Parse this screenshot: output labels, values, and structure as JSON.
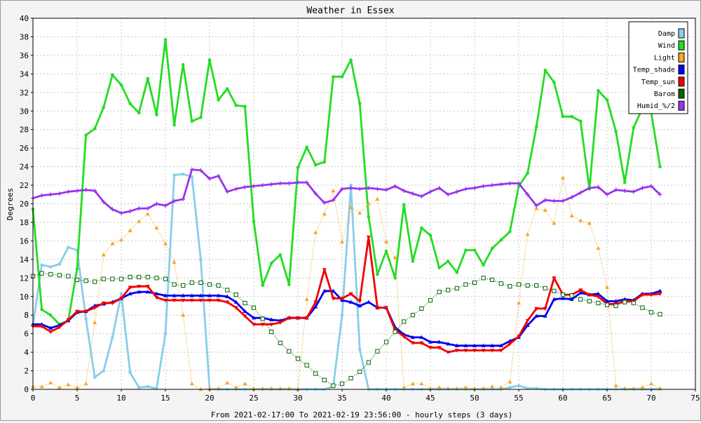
{
  "chart_data": {
    "type": "line",
    "title": "Weather in Essex",
    "xlabel": "From 2021-02-17:00 To 2021-02-19 23:56:00 - hourly steps (3 days)",
    "ylabel": "Degrees",
    "xlim": [
      0,
      75
    ],
    "ylim": [
      0,
      40
    ],
    "xticks": [
      0,
      5,
      10,
      15,
      20,
      25,
      30,
      35,
      40,
      45,
      50,
      55,
      60,
      65,
      70,
      75
    ],
    "yticks": [
      0,
      2,
      4,
      6,
      8,
      10,
      12,
      14,
      16,
      18,
      20,
      22,
      24,
      26,
      28,
      30,
      32,
      34,
      36,
      38,
      40
    ],
    "grid": true,
    "legend_position": "top-right",
    "x": [
      0,
      1,
      2,
      3,
      4,
      5,
      6,
      7,
      8,
      9,
      10,
      11,
      12,
      13,
      14,
      15,
      16,
      17,
      18,
      19,
      20,
      21,
      22,
      23,
      24,
      25,
      26,
      27,
      28,
      29,
      30,
      31,
      32,
      33,
      34,
      35,
      36,
      37,
      38,
      39,
      40,
      41,
      42,
      43,
      44,
      45,
      46,
      47,
      48,
      49,
      50,
      51,
      52,
      53,
      54,
      55,
      56,
      57,
      58,
      59,
      60,
      61,
      62,
      63,
      64,
      65,
      66,
      67,
      68,
      69,
      70,
      71
    ],
    "series": [
      {
        "name": "Damp",
        "color": "#87ceeb",
        "style": "solid",
        "marker": "dot",
        "values": [
          6.9,
          13.4,
          13.2,
          13.5,
          15.3,
          15.0,
          7.6,
          1.3,
          2.0,
          5.6,
          10.3,
          1.8,
          0.2,
          0.3,
          0.1,
          6.0,
          23.1,
          23.2,
          22.9,
          14.0,
          0.0,
          0.0,
          0.0,
          0.0,
          0.0,
          0.0,
          0.0,
          0.0,
          0.0,
          0.0,
          0.0,
          0.0,
          0.0,
          0.0,
          0.3,
          8.0,
          22.0,
          4.3,
          0.0,
          0.0,
          0.0,
          0.0,
          0.0,
          0.0,
          0.0,
          0.0,
          0.0,
          0.0,
          0.0,
          0.0,
          0.0,
          0.0,
          0.0,
          0.0,
          0.2,
          0.4,
          0.1,
          0.1,
          0.0,
          0.0,
          0.0,
          0.0,
          0.0,
          0.0,
          0.0,
          0.0,
          0.0,
          0.0,
          0.0,
          0.0,
          0.0,
          0.0
        ]
      },
      {
        "name": "Wind",
        "color": "#22dd22",
        "style": "solid",
        "marker": "dot",
        "values": [
          19.4,
          8.6,
          8.0,
          7.0,
          7.4,
          13.0,
          27.4,
          28.1,
          30.4,
          33.9,
          32.8,
          30.8,
          29.8,
          33.5,
          29.6,
          37.7,
          28.5,
          35.0,
          28.9,
          29.3,
          35.5,
          31.2,
          32.4,
          30.6,
          30.5,
          18.1,
          11.2,
          13.6,
          14.5,
          11.3,
          23.9,
          26.1,
          24.2,
          24.5,
          33.7,
          33.7,
          35.5,
          30.8,
          18.6,
          12.4,
          14.9,
          12.0,
          19.9,
          13.8,
          17.4,
          16.6,
          13.1,
          13.8,
          12.6,
          15.0,
          15.0,
          13.4,
          15.2,
          16.1,
          17.0,
          21.9,
          23.3,
          28.3,
          34.4,
          33.1,
          29.4,
          29.4,
          28.9,
          21.6,
          32.2,
          31.2,
          27.8,
          22.3,
          28.2,
          30.3,
          29.8,
          24.0
        ]
      },
      {
        "name": "Light",
        "color": "#f5a623",
        "style": "dotted",
        "marker": "triangle",
        "values": [
          0.3,
          0.3,
          0.7,
          0.2,
          0.5,
          0.2,
          0.6,
          7.2,
          14.5,
          15.7,
          16.1,
          17.1,
          18.1,
          18.9,
          17.4,
          15.7,
          13.7,
          8.0,
          0.6,
          0.0,
          0.1,
          0.1,
          0.7,
          0.2,
          0.6,
          0.1,
          0.1,
          0.1,
          0.1,
          0.1,
          0.0,
          9.7,
          16.9,
          18.9,
          21.4,
          15.9,
          19.6,
          19.0,
          20.0,
          20.5,
          15.9,
          14.2,
          0.2,
          0.6,
          0.6,
          0.1,
          0.2,
          0.1,
          0.1,
          0.2,
          0.1,
          0.1,
          0.3,
          0.2,
          0.8,
          9.3,
          16.7,
          19.5,
          19.3,
          17.9,
          22.8,
          18.7,
          18.2,
          17.9,
          15.2,
          11.0,
          0.4,
          0.1,
          0.1,
          0.2,
          0.6,
          0.1
        ]
      },
      {
        "name": "Temp_shade",
        "color": "#0000ee",
        "style": "solid",
        "marker": "triangle",
        "values": [
          7.0,
          7.0,
          6.6,
          6.9,
          7.4,
          8.3,
          8.4,
          9.0,
          9.2,
          9.4,
          9.8,
          10.3,
          10.5,
          10.5,
          10.3,
          10.1,
          10.1,
          10.1,
          10.1,
          10.1,
          10.1,
          10.1,
          10.0,
          9.4,
          8.4,
          7.7,
          7.7,
          7.5,
          7.4,
          7.7,
          7.7,
          7.7,
          8.9,
          10.6,
          10.6,
          9.6,
          9.4,
          9.0,
          9.4,
          8.8,
          8.8,
          6.7,
          5.9,
          5.6,
          5.6,
          5.1,
          5.1,
          4.9,
          4.7,
          4.7,
          4.7,
          4.7,
          4.7,
          4.7,
          5.2,
          5.6,
          6.9,
          7.9,
          7.9,
          9.7,
          9.8,
          9.7,
          10.4,
          10.2,
          10.3,
          9.5,
          9.5,
          9.7,
          9.6,
          10.3,
          10.3,
          10.6
        ]
      },
      {
        "name": "Temp_sun",
        "color": "#ee0000",
        "style": "solid",
        "marker": "triangle-down",
        "values": [
          6.8,
          6.8,
          6.2,
          6.7,
          7.5,
          8.4,
          8.4,
          8.8,
          9.3,
          9.3,
          9.8,
          11.0,
          11.1,
          11.1,
          9.9,
          9.6,
          9.6,
          9.6,
          9.6,
          9.6,
          9.6,
          9.6,
          9.4,
          8.8,
          7.9,
          7.0,
          7.0,
          7.0,
          7.2,
          7.7,
          7.7,
          7.7,
          9.4,
          12.9,
          9.8,
          9.8,
          10.3,
          9.5,
          16.4,
          8.8,
          8.8,
          6.4,
          5.7,
          5.0,
          5.0,
          4.5,
          4.5,
          4.0,
          4.2,
          4.2,
          4.2,
          4.2,
          4.2,
          4.2,
          4.9,
          5.7,
          7.4,
          8.7,
          8.7,
          12.0,
          10.2,
          10.2,
          10.7,
          10.2,
          10.0,
          9.2,
          9.2,
          9.5,
          9.5,
          10.2,
          10.2,
          10.3
        ]
      },
      {
        "name": "Barom",
        "color": "#006400",
        "style": "dotted",
        "marker": "square",
        "values": [
          12.2,
          12.5,
          12.4,
          12.3,
          12.2,
          11.8,
          11.7,
          11.6,
          11.9,
          11.9,
          11.9,
          12.1,
          12.1,
          12.1,
          12.0,
          11.9,
          11.3,
          11.2,
          11.5,
          11.5,
          11.3,
          11.2,
          10.7,
          10.2,
          9.3,
          8.8,
          7.6,
          6.2,
          5.0,
          4.1,
          3.3,
          2.6,
          1.7,
          1.0,
          0.4,
          0.6,
          1.2,
          1.9,
          2.9,
          4.1,
          5.1,
          6.2,
          7.3,
          8.0,
          8.7,
          9.6,
          10.5,
          10.7,
          10.9,
          11.3,
          11.5,
          12.0,
          11.8,
          11.4,
          11.1,
          11.3,
          11.2,
          11.2,
          10.9,
          10.6,
          10.2,
          10.1,
          9.7,
          9.5,
          9.3,
          9.1,
          9.0,
          9.4,
          9.3,
          8.8,
          8.3,
          8.1
        ]
      },
      {
        "name": "Humid_%/2",
        "color": "#9933ee",
        "style": "solid",
        "marker": "plus",
        "values": [
          20.6,
          20.9,
          21.0,
          21.1,
          21.3,
          21.4,
          21.5,
          21.4,
          20.2,
          19.4,
          19.0,
          19.2,
          19.5,
          19.5,
          20.0,
          19.8,
          20.3,
          20.5,
          23.7,
          23.6,
          22.7,
          23.0,
          21.3,
          21.6,
          21.8,
          21.9,
          22.0,
          22.1,
          22.2,
          22.2,
          22.3,
          22.3,
          21.1,
          20.1,
          20.4,
          21.6,
          21.7,
          21.6,
          21.7,
          21.6,
          21.5,
          21.9,
          21.4,
          21.1,
          20.8,
          21.3,
          21.7,
          21.0,
          21.3,
          21.6,
          21.7,
          21.9,
          22.0,
          22.1,
          22.2,
          22.2,
          21.0,
          19.8,
          20.4,
          20.3,
          20.3,
          20.7,
          21.2,
          21.7,
          21.8,
          21.0,
          21.5,
          21.4,
          21.3,
          21.7,
          21.9,
          21.0
        ]
      }
    ]
  }
}
